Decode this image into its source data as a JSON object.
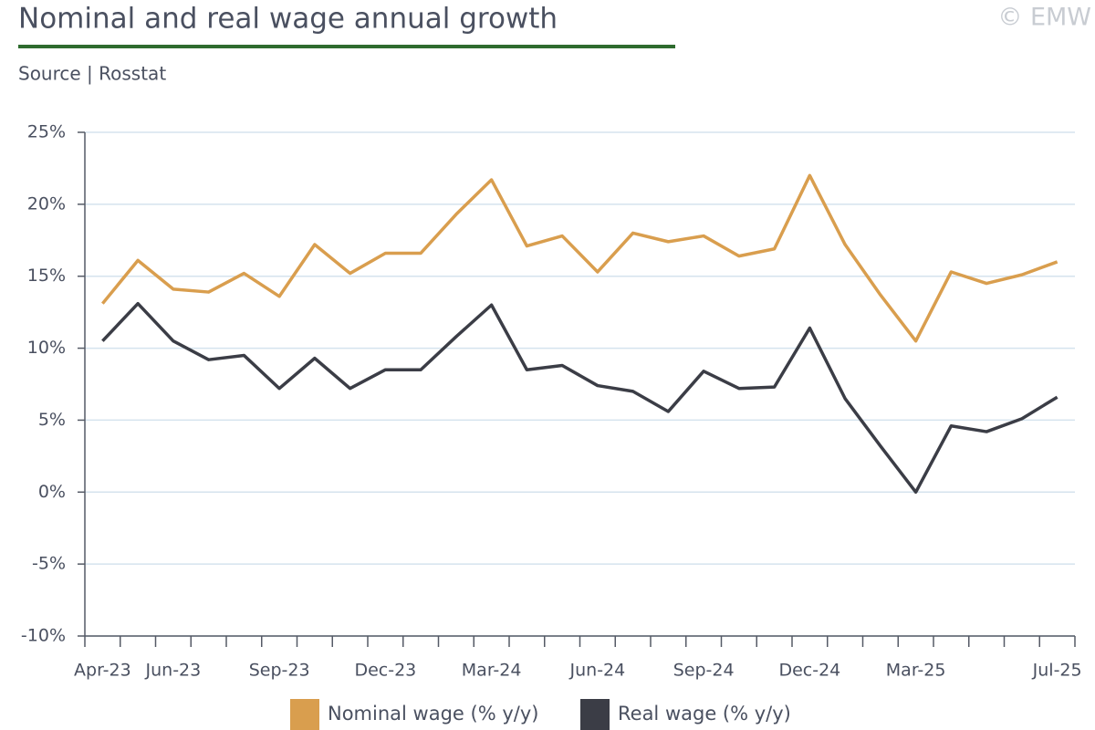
{
  "chart_data": {
    "type": "line",
    "title": "Nominal and real wage annual growth",
    "subtitle": "Source | Rosstat",
    "credit": "© EMW",
    "categories": [
      "Apr-23",
      null,
      "Jun-23",
      null,
      null,
      "Sep-23",
      null,
      null,
      "Dec-23",
      null,
      null,
      "Mar-24",
      null,
      null,
      "Jun-24",
      null,
      null,
      "Sep-24",
      null,
      null,
      "Dec-24",
      null,
      null,
      "Mar-25",
      null,
      null,
      null,
      "Jul-25"
    ],
    "series": [
      {
        "name": "Nominal wage (% y/y)",
        "color": "#d99e4e",
        "values": [
          13.1,
          16.1,
          14.1,
          13.9,
          15.2,
          13.6,
          17.2,
          15.2,
          16.6,
          16.6,
          19.3,
          21.7,
          17.1,
          17.8,
          15.3,
          18.0,
          17.4,
          17.8,
          16.4,
          16.9,
          22.0,
          17.2,
          13.7,
          10.5,
          15.3,
          14.5,
          15.1,
          16.0
        ]
      },
      {
        "name": "Real wage (% y/y)",
        "color": "#3b3d46",
        "values": [
          10.5,
          13.1,
          10.5,
          9.2,
          9.5,
          7.2,
          9.3,
          7.2,
          8.5,
          8.5,
          10.8,
          13.0,
          8.5,
          8.8,
          7.4,
          7.0,
          5.6,
          8.4,
          7.2,
          7.3,
          11.4,
          6.5,
          3.2,
          0.0,
          4.6,
          4.2,
          5.1,
          6.6
        ]
      }
    ],
    "ylim": [
      -10,
      25
    ],
    "yticks": [
      {
        "value": -10,
        "label": "-10%"
      },
      {
        "value": -5,
        "label": "-5%"
      },
      {
        "value": 0,
        "label": "0%"
      },
      {
        "value": 5,
        "label": "5%"
      },
      {
        "value": 10,
        "label": "10%"
      },
      {
        "value": 15,
        "label": "15%"
      },
      {
        "value": 20,
        "label": "20%"
      },
      {
        "value": 25,
        "label": "25%"
      }
    ],
    "grid": true
  }
}
